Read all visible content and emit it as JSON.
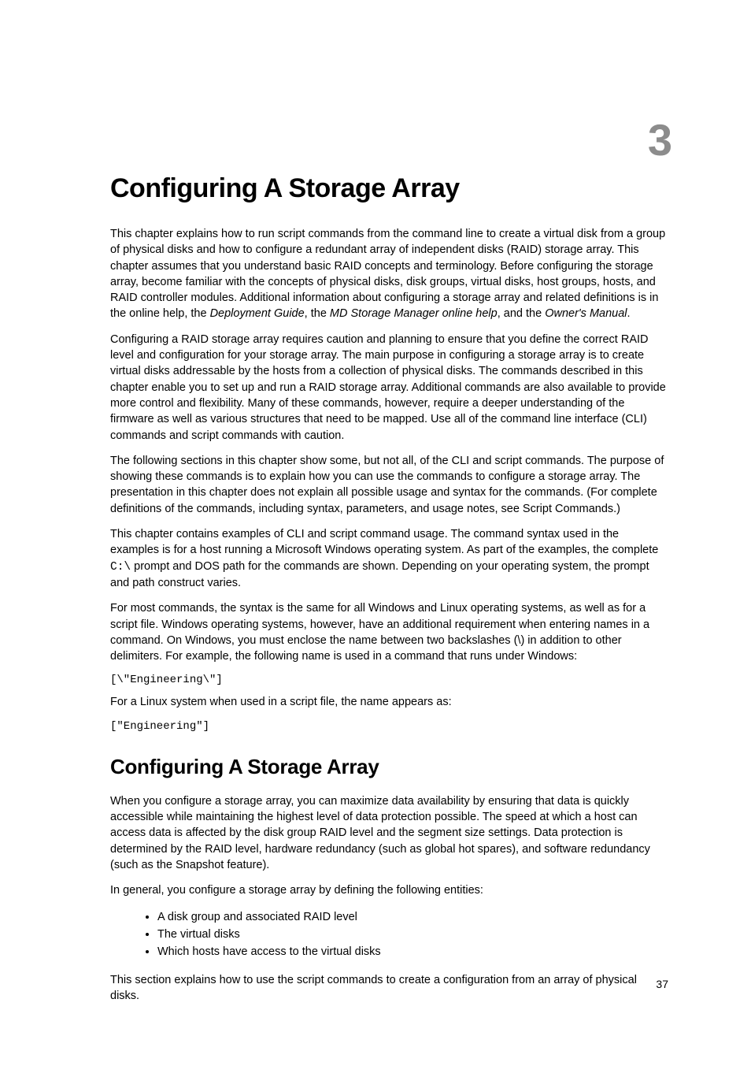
{
  "chapter_number": "3",
  "chapter_title": "Configuring A Storage Array",
  "para1_a": "This chapter explains how to run script commands from the command line to create a virtual disk from a group of physical disks and how to configure a redundant array of independent disks (RAID) storage array. This chapter assumes that you understand basic RAID concepts and terminology. Before configuring the storage array, become familiar with the concepts of physical disks, disk groups, virtual disks, host groups, hosts, and RAID controller modules. Additional information about configuring a storage array and related definitions is in the online help, the ",
  "para1_it1": "Deployment Guide",
  "para1_b": ", the ",
  "para1_it2": "MD Storage Manager online help",
  "para1_c": ", and the ",
  "para1_it3": "Owner's Manual",
  "para1_d": ".",
  "para2": "Configuring a RAID storage array requires caution and planning to ensure that you define the correct RAID level and configuration for your storage array. The main purpose in configuring a storage array is to create virtual disks addressable by the hosts from a collection of physical disks. The commands described in this chapter enable you to set up and run a RAID storage array. Additional commands are also available to provide more control and flexibility. Many of these commands, however, require a deeper understanding of the firmware as well as various structures that need to be mapped. Use all of the command line interface (CLI) commands and script commands with caution.",
  "para3": "The following sections in this chapter show some, but not all, of the CLI and script commands. The purpose of showing these commands is to explain how you can use the commands to configure a storage array. The presentation in this chapter does not explain all possible usage and syntax for the commands. (For complete definitions of the commands, including syntax, parameters, and usage notes, see Script Commands.)",
  "para4_a": "This chapter contains examples of CLI and script command usage. The command syntax used in the examples is for a host running a Microsoft Windows operating system. As part of the examples, the complete ",
  "para4_mono": "C:\\",
  "para4_b": " prompt and DOS path for the commands are shown. Depending on your operating system, the prompt and path construct varies.",
  "para5": "For most commands, the syntax is the same for all Windows and Linux operating systems, as well as for a script file. Windows operating systems, however, have an additional requirement when entering names in a command. On Windows, you must enclose the name between two backslashes (\\) in addition to other delimiters. For example, the following name is used in a command that runs under Windows:",
  "code1": "[\\\"Engineering\\\"]",
  "para6": "For a Linux system when used in a script file, the name appears as:",
  "code2": "[\"Engineering\"]",
  "section_title": "Configuring A Storage Array",
  "para7": "When you configure a storage array, you can maximize data availability by ensuring that data is quickly accessible while maintaining the highest level of data protection possible. The speed at which a host can access data is affected by the disk group RAID level and the segment size settings. Data protection is determined by the RAID level, hardware redundancy (such as global hot spares), and software redundancy (such as the Snapshot feature).",
  "para8": "In general, you configure a storage array by defining the following entities:",
  "bullets": {
    "b1": "A disk group and associated RAID level",
    "b2": "The virtual disks",
    "b3": "Which hosts have access to the virtual disks"
  },
  "para9": "This section explains how to use the script commands to create a configuration from an array of physical disks.",
  "page_number": "37",
  "style": {
    "chapter_number_color": "#8c8c8c",
    "text_color": "#000000",
    "background": "#ffffff"
  }
}
